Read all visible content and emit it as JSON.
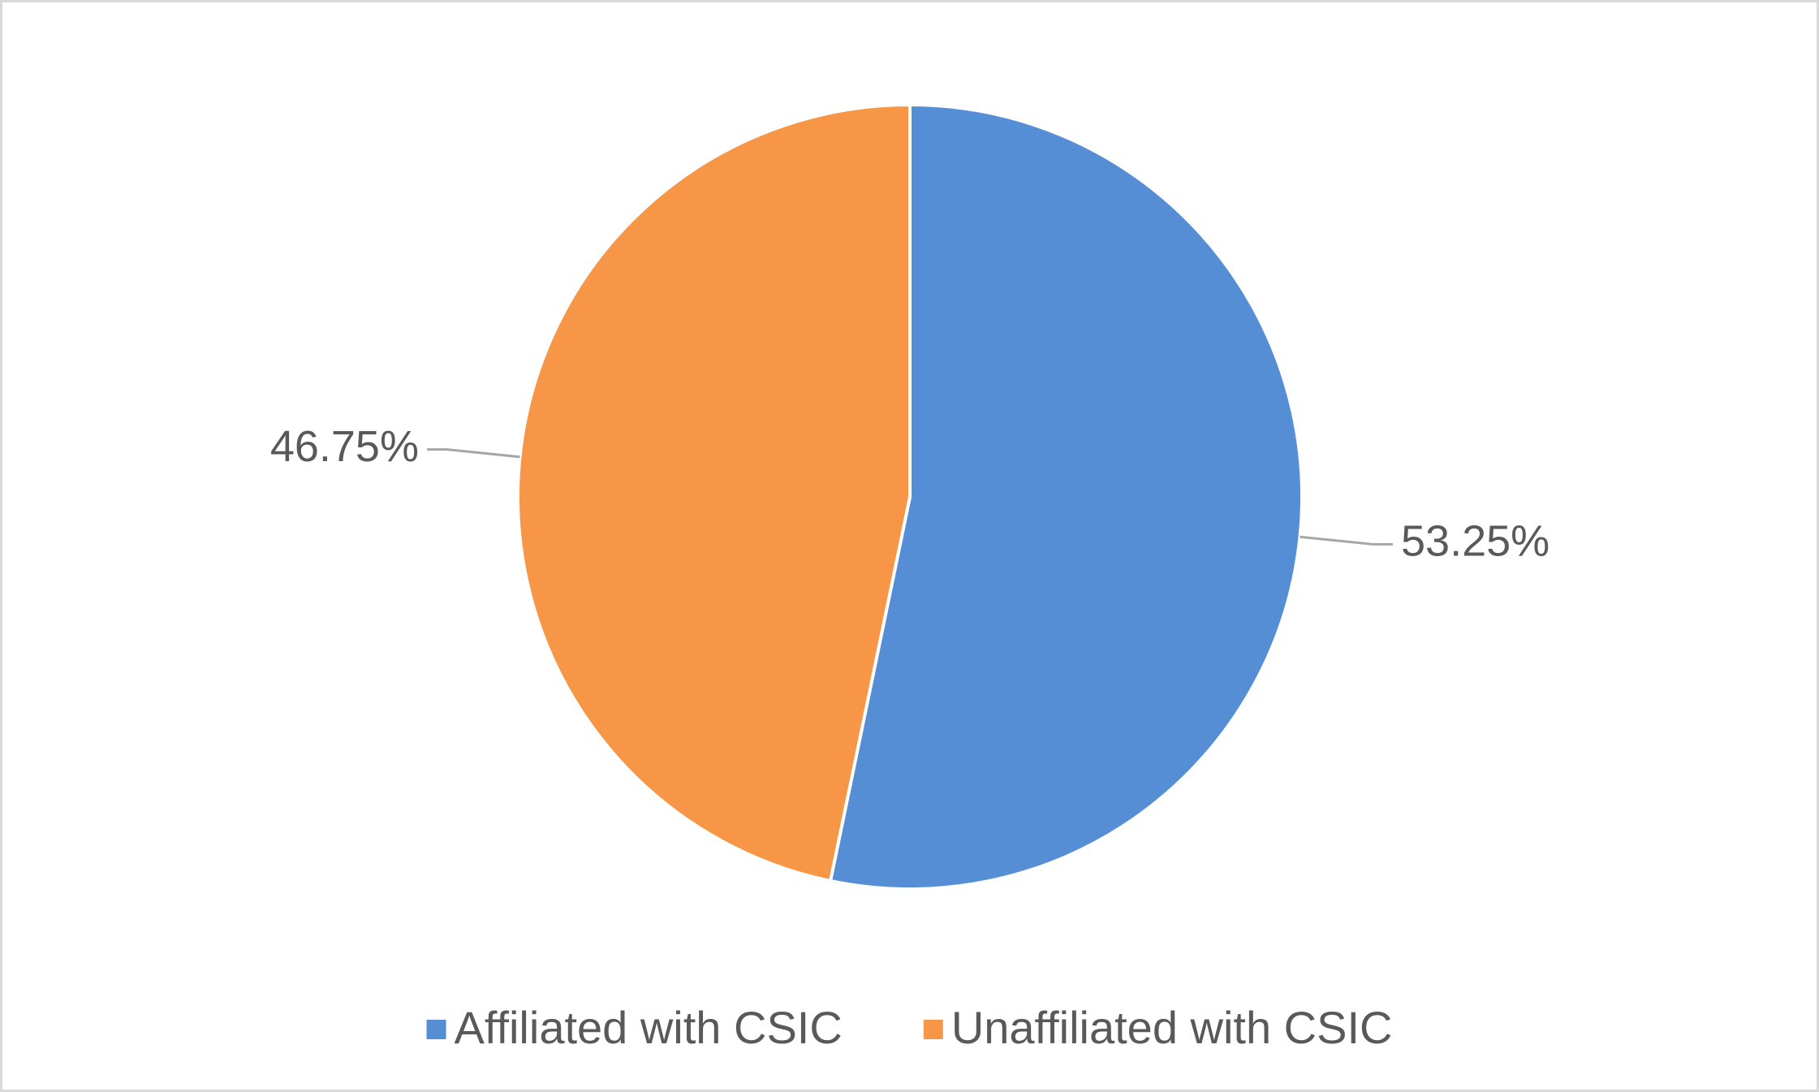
{
  "chart_data": {
    "type": "pie",
    "categories": [
      "Affiliated with CSIC",
      "Unaffiliated with CSIC"
    ],
    "values": [
      53.25,
      46.75
    ],
    "value_labels": [
      "53.25%",
      "46.75%"
    ],
    "colors": [
      "#558ed5",
      "#f79646"
    ],
    "legend": "bottom"
  }
}
